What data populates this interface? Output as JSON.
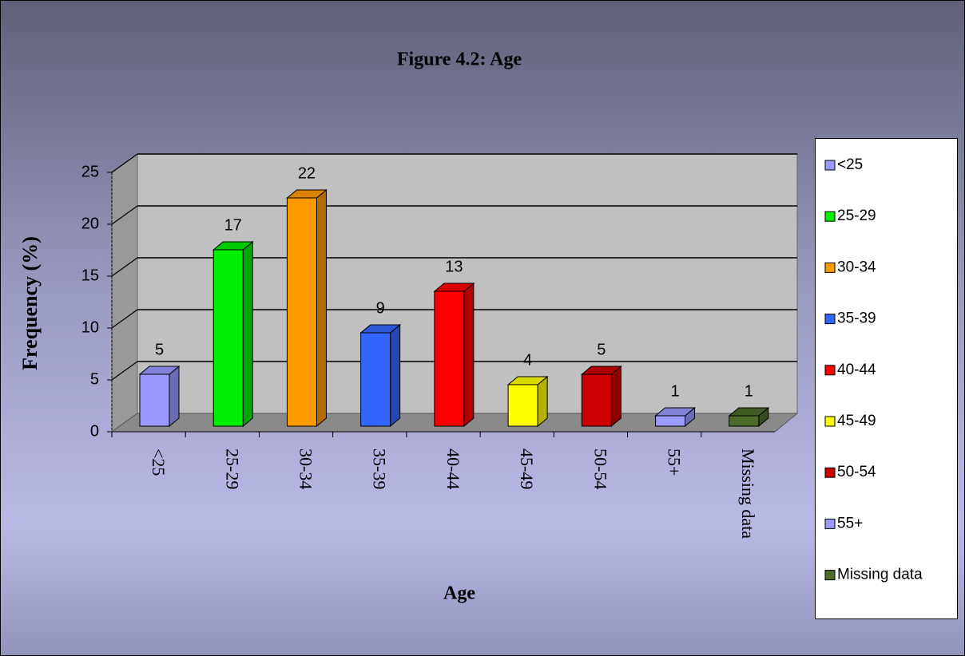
{
  "chart_data": {
    "type": "bar3d",
    "title": "Figure 4.2: Age",
    "x_label": "Age",
    "y_label": "Frequency (%)",
    "categories": [
      "<25",
      "25-29",
      "30-34",
      "35-39",
      "40-44",
      "45-49",
      "50-54",
      "55+",
      "Missing data"
    ],
    "values": [
      5,
      17,
      22,
      9,
      13,
      4,
      5,
      1,
      1
    ],
    "colors": [
      "#9999ff",
      "#00ee00",
      "#ff9900",
      "#3366ff",
      "#ff0000",
      "#ffff00",
      "#cc0000",
      "#9999ff",
      "#4d6b2a"
    ],
    "ylim": [
      0,
      25
    ],
    "yticks": [
      0,
      5,
      10,
      15,
      20,
      25
    ],
    "grid": true,
    "legend": "right"
  }
}
